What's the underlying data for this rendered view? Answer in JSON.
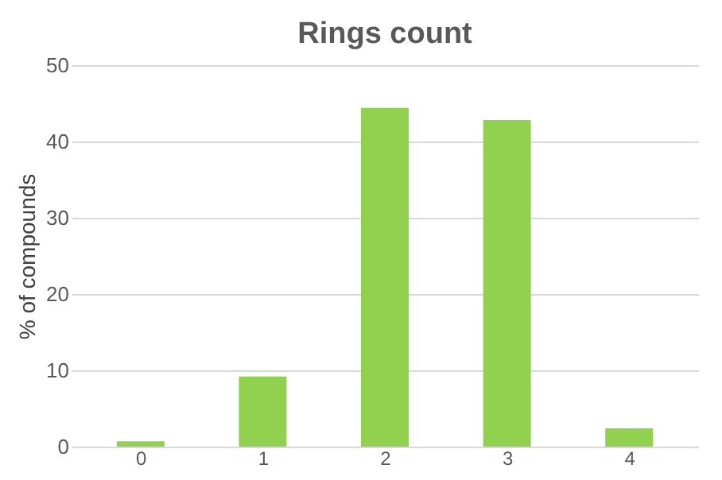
{
  "chart_data": {
    "type": "bar",
    "title": "Rings count",
    "ylabel": "% of compounds",
    "categories": [
      "0",
      "1",
      "2",
      "3",
      "4"
    ],
    "values": [
      0.7,
      9.2,
      44.4,
      42.8,
      2.4
    ],
    "color": "#92d050",
    "ylim": [
      0,
      50
    ],
    "yticks": [
      0,
      10,
      20,
      30,
      40,
      50
    ],
    "grid": "y"
  }
}
